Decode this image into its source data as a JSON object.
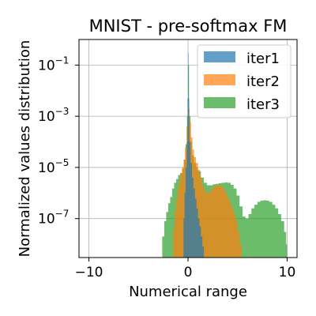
{
  "chart_data": {
    "type": "histogram",
    "title": "MNIST - pre-softmax FM",
    "xlabel": "Numerical range",
    "ylabel": "Normalized values distribution",
    "xlim": [
      -11,
      11
    ],
    "ylim": [
      3e-09,
      1
    ],
    "yscale": "log",
    "grid": true,
    "legend_position": "top-right",
    "x_ticks": [
      {
        "value": -10,
        "label": "−10"
      },
      {
        "value": 0,
        "label": "0"
      },
      {
        "value": 10,
        "label": "10"
      }
    ],
    "y_ticks": [
      {
        "value": 0.1,
        "label": "10",
        "exp": "−1"
      },
      {
        "value": 0.001,
        "label": "10",
        "exp": "−3"
      },
      {
        "value": 1e-05,
        "label": "10",
        "exp": "−5"
      },
      {
        "value": 1e-07,
        "label": "10",
        "exp": "−7"
      }
    ],
    "series": [
      {
        "name": "iter3",
        "color": "#2ca02c",
        "opacity": 0.7,
        "points": [
          [
            -2.7,
            3e-09
          ],
          [
            -2.6,
            2e-08
          ],
          [
            -2.4,
            8e-08
          ],
          [
            -2.2,
            1.8e-07
          ],
          [
            -2.0,
            4e-07
          ],
          [
            -1.8,
            7e-07
          ],
          [
            -1.6,
            1.5e-06
          ],
          [
            -1.4,
            2.5e-06
          ],
          [
            -1.2,
            3.5e-06
          ],
          [
            -1.0,
            5e-06
          ],
          [
            -0.8,
            6e-06
          ],
          [
            -0.6,
            9e-06
          ],
          [
            -0.4,
            2e-05
          ],
          [
            -0.25,
            8e-05
          ],
          [
            -0.1,
            0.001
          ],
          [
            0.0,
            0.1
          ],
          [
            0.1,
            0.001
          ],
          [
            0.25,
            0.0001
          ],
          [
            0.4,
            3e-05
          ],
          [
            0.6,
            1.5e-05
          ],
          [
            0.8,
            1e-05
          ],
          [
            1.0,
            7e-06
          ],
          [
            1.3,
            4e-06
          ],
          [
            1.6,
            2.5e-06
          ],
          [
            1.9,
            2e-06
          ],
          [
            2.2,
            2e-06
          ],
          [
            2.5,
            2.2e-06
          ],
          [
            2.8,
            2.3e-06
          ],
          [
            3.1,
            2.4e-06
          ],
          [
            3.4,
            2.5e-06
          ],
          [
            3.7,
            2.6e-06
          ],
          [
            4.0,
            2.5e-06
          ],
          [
            4.3,
            2.1e-06
          ],
          [
            4.6,
            1.5e-06
          ],
          [
            4.9,
            8e-07
          ],
          [
            5.2,
            3e-07
          ],
          [
            5.5,
            1.2e-07
          ],
          [
            5.8,
            1e-07
          ],
          [
            6.1,
            1.5e-07
          ],
          [
            6.4,
            2.5e-07
          ],
          [
            6.7,
            3.5e-07
          ],
          [
            7.0,
            4.5e-07
          ],
          [
            7.3,
            5e-07
          ],
          [
            7.6,
            5.2e-07
          ],
          [
            7.9,
            5e-07
          ],
          [
            8.2,
            4.5e-07
          ],
          [
            8.5,
            3.5e-07
          ],
          [
            8.8,
            2.5e-07
          ],
          [
            9.1,
            1.5e-07
          ],
          [
            9.4,
            8e-08
          ],
          [
            9.7,
            3e-08
          ],
          [
            9.9,
            1e-08
          ],
          [
            10.0,
            3e-09
          ]
        ]
      },
      {
        "name": "iter2",
        "color": "#ff7f0e",
        "opacity": 0.7,
        "points": [
          [
            -1.6,
            3e-09
          ],
          [
            -1.5,
            4e-08
          ],
          [
            -1.35,
            2e-07
          ],
          [
            -1.2,
            6e-07
          ],
          [
            -1.05,
            1.5e-06
          ],
          [
            -0.9,
            3e-06
          ],
          [
            -0.75,
            6e-06
          ],
          [
            -0.6,
            1e-05
          ],
          [
            -0.45,
            2e-05
          ],
          [
            -0.3,
            6e-05
          ],
          [
            -0.15,
            0.0004
          ],
          [
            0.0,
            0.002
          ],
          [
            0.15,
            0.0006
          ],
          [
            0.3,
            0.00015
          ],
          [
            0.45,
            5e-05
          ],
          [
            0.6,
            2.5e-05
          ],
          [
            0.8,
            1.5e-05
          ],
          [
            1.0,
            8e-06
          ],
          [
            1.2,
            4e-06
          ],
          [
            1.4,
            2e-06
          ],
          [
            1.6,
            1.3e-06
          ],
          [
            1.8,
            1e-06
          ],
          [
            2.0,
            1e-06
          ],
          [
            2.2,
            1.2e-06
          ],
          [
            2.4,
            1.5e-06
          ],
          [
            2.6,
            1.8e-06
          ],
          [
            2.8,
            2e-06
          ],
          [
            3.0,
            2e-06
          ],
          [
            3.2,
            1.9e-06
          ],
          [
            3.4,
            1.7e-06
          ],
          [
            3.6,
            1.3e-06
          ],
          [
            3.8,
            9e-07
          ],
          [
            4.0,
            6e-07
          ],
          [
            4.2,
            4e-07
          ],
          [
            4.4,
            2.5e-07
          ],
          [
            4.6,
            1.5e-07
          ],
          [
            4.8,
            8e-08
          ],
          [
            5.0,
            3e-08
          ],
          [
            5.2,
            1e-08
          ],
          [
            5.4,
            3e-09
          ]
        ]
      },
      {
        "name": "iter1",
        "color": "#1f77b4",
        "opacity": 0.7,
        "points": [
          [
            -0.55,
            3e-09
          ],
          [
            -0.45,
            1e-07
          ],
          [
            -0.35,
            1e-06
          ],
          [
            -0.25,
            1e-05
          ],
          [
            -0.12,
            0.0001
          ],
          [
            -0.05,
            0.005
          ],
          [
            0.0,
            0.3
          ],
          [
            0.05,
            0.005
          ],
          [
            0.12,
            0.0001
          ],
          [
            0.25,
            1.5e-05
          ],
          [
            0.4,
            4e-06
          ],
          [
            0.55,
            1.5e-06
          ],
          [
            0.7,
            6e-07
          ],
          [
            0.85,
            2.5e-07
          ],
          [
            1.0,
            1e-07
          ],
          [
            1.15,
            5e-08
          ],
          [
            1.3,
            2e-08
          ],
          [
            1.45,
            8e-09
          ],
          [
            1.6,
            3e-09
          ]
        ]
      }
    ]
  }
}
